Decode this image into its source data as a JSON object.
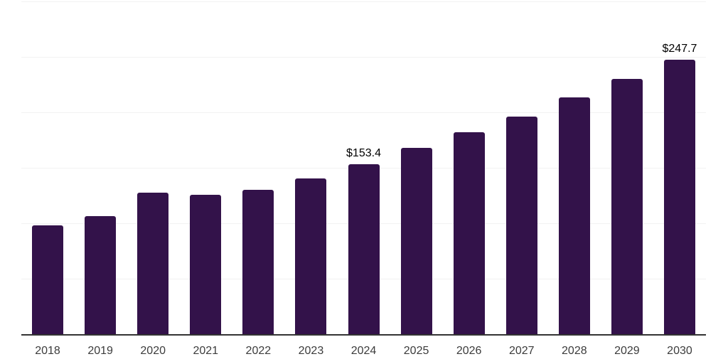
{
  "chart_data": {
    "type": "bar",
    "title": "",
    "xlabel": "",
    "ylabel": "",
    "categories": [
      "2018",
      "2019",
      "2020",
      "2021",
      "2022",
      "2023",
      "2024",
      "2025",
      "2026",
      "2027",
      "2028",
      "2029",
      "2030"
    ],
    "values": [
      98.4,
      106.7,
      127.5,
      125.6,
      130.0,
      140.6,
      153.4,
      168.1,
      182.2,
      196.2,
      213.5,
      230.1,
      247.7
    ],
    "data_labels": [
      {
        "category": "2024",
        "text": "$153.4"
      },
      {
        "category": "2030",
        "text": "$247.7"
      }
    ],
    "ylim": [
      0,
      300
    ],
    "gridline_interval": 50,
    "y_axis_tick_labels_visible": false,
    "grid": true,
    "legend_position": "none"
  },
  "style": {
    "bar_color": "#33124a",
    "gridline_color": "#f2f2f2",
    "axis_line_color": "#333333",
    "x_tick_label_color": "#3c3c3c",
    "data_label_color": "#000000",
    "background_color": "#ffffff"
  }
}
